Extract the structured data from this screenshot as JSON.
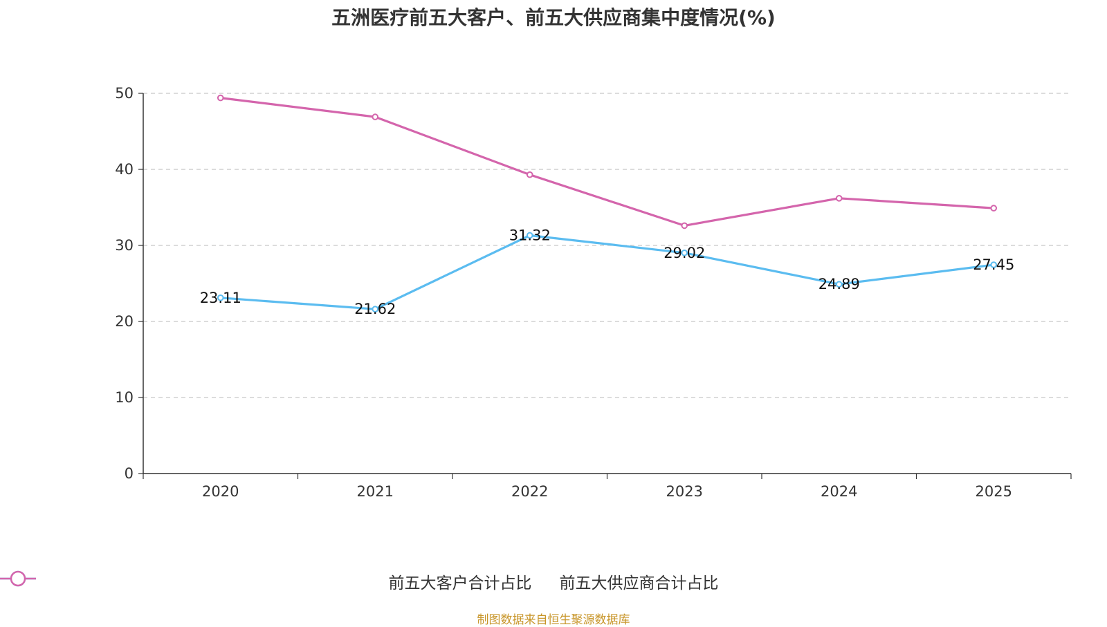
{
  "chart_data": {
    "type": "line",
    "title": "五洲医疗前五大客户、前五大供应商集中度情况(%)",
    "categories": [
      "2020",
      "2021",
      "2022",
      "2023",
      "2024",
      "2025"
    ],
    "series": [
      {
        "name": "前五大客户合计占比",
        "color": "#5BBCF0",
        "values": [
          23.11,
          21.62,
          31.32,
          29.02,
          24.89,
          27.45
        ],
        "data_labels": [
          "23.11",
          "21.62",
          "31.32",
          "29.02",
          "24.89",
          "27.45"
        ]
      },
      {
        "name": "前五大供应商合计占比",
        "color": "#D465AC",
        "values": [
          49.4,
          46.9,
          39.3,
          32.6,
          36.2,
          34.9
        ]
      }
    ],
    "ylim": [
      0,
      50
    ],
    "yticks": [
      0,
      10,
      20,
      30,
      40,
      50
    ],
    "grid": true,
    "legend": "bottom-center",
    "xlabel": "",
    "ylabel": ""
  },
  "source_text": "制图数据来自恒生聚源数据库",
  "source_color": "#C8962A"
}
